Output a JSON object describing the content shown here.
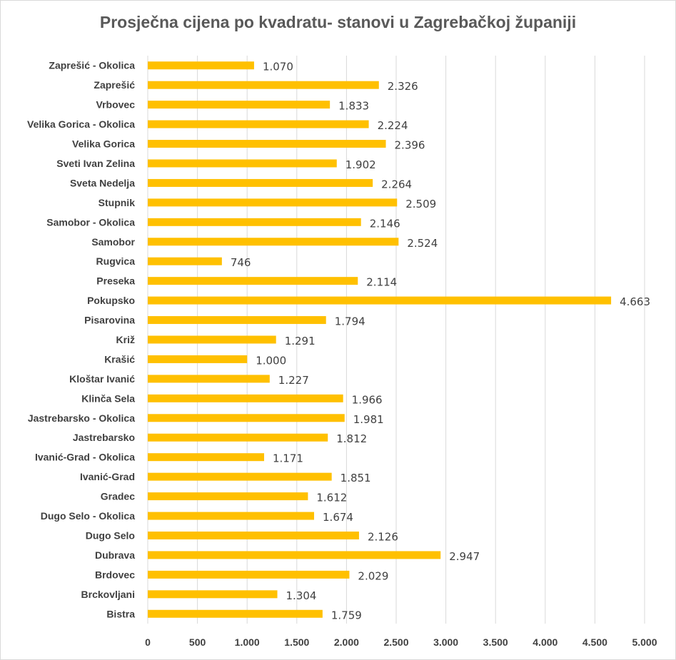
{
  "chart_data": {
    "type": "bar",
    "orientation": "horizontal",
    "title": "Prosječna cijena po kvadratu- stanovi u Zagrebačkoj županiji",
    "xlabel": "",
    "ylabel": "",
    "xlim": [
      0,
      5000
    ],
    "xticks": [
      0,
      500,
      1000,
      1500,
      2000,
      2500,
      3000,
      3500,
      4000,
      4500,
      5000
    ],
    "xtick_labels": [
      "0",
      "500",
      "1.000",
      "1.500",
      "2.000",
      "2.500",
      "3.000",
      "3.500",
      "4.000",
      "4.500",
      "5.000"
    ],
    "grid": true,
    "bar_color": "#FFC000",
    "categories": [
      "Zaprešić - Okolica",
      "Zaprešić",
      "Vrbovec",
      "Velika Gorica - Okolica",
      "Velika Gorica",
      "Sveti Ivan Zelina",
      "Sveta Nedelja",
      "Stupnik",
      "Samobor - Okolica",
      "Samobor",
      "Rugvica",
      "Preseka",
      "Pokupsko",
      "Pisarovina",
      "Križ",
      "Krašić",
      "Kloštar Ivanić",
      "Klinča Sela",
      "Jastrebarsko - Okolica",
      "Jastrebarsko",
      "Ivanić-Grad - Okolica",
      "Ivanić-Grad",
      "Gradec",
      "Dugo Selo - Okolica",
      "Dugo Selo",
      "Dubrava",
      "Brdovec",
      "Brckovljani",
      "Bistra"
    ],
    "values": [
      1070,
      2326,
      1833,
      2224,
      2396,
      1902,
      2264,
      2509,
      2146,
      2524,
      746,
      2114,
      4663,
      1794,
      1291,
      1000,
      1227,
      1966,
      1981,
      1812,
      1171,
      1851,
      1612,
      1674,
      2126,
      2947,
      2029,
      1304,
      1759
    ],
    "value_labels": [
      "1.070",
      "2.326",
      "1.833",
      "2.224",
      "2.396",
      "1.902",
      "2.264",
      "2.509",
      "2.146",
      "2.524",
      "746",
      "2.114",
      "4.663",
      "1.794",
      "1.291",
      "1.000",
      "1.227",
      "1.966",
      "1.981",
      "1.812",
      "1.171",
      "1.851",
      "1.612",
      "1.674",
      "2.126",
      "2.947",
      "2.029",
      "1.304",
      "1.759"
    ]
  }
}
